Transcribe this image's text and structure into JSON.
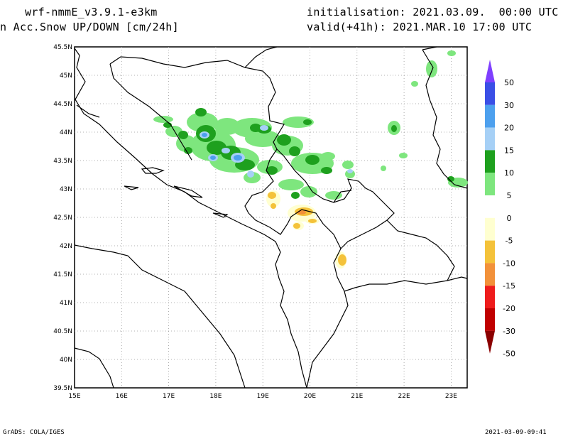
{
  "header": {
    "model": "wrf-nmmE_v3.9.1-e3km",
    "variable": "n Acc.Snow UP/DOWN [cm/24h]",
    "initialisation": "initialisation: 2021.03.09.  00:00 UTC",
    "valid": "valid(+41h): 2021.MAR.10 17:00 UTC"
  },
  "axes": {
    "lat_labels": [
      "45.5N",
      "45N",
      "44.5N",
      "44N",
      "43.5N",
      "43N",
      "42.5N",
      "42N",
      "41.5N",
      "41N",
      "40.5N",
      "40N",
      "39.5N"
    ],
    "lon_labels": [
      "15E",
      "16E",
      "17E",
      "18E",
      "19E",
      "20E",
      "21E",
      "22E",
      "23E"
    ]
  },
  "colorbar": {
    "labels": [
      "50",
      "30",
      "20",
      "15",
      "10",
      "5",
      "0",
      "-5",
      "-10",
      "-15",
      "-20",
      "-30",
      "-50"
    ],
    "colors": [
      "#7f3fff",
      "#3a4fe6",
      "#4da0ee",
      "#a6d0f6",
      "#1ea01e",
      "#7ee67e",
      "#ffffff",
      "#ffffd0",
      "#f4c23a",
      "#f2913a",
      "#ee1c1c",
      "#c00000",
      "#8b0000"
    ]
  },
  "footer": {
    "left": "GrADS: COLA/IGES",
    "right": "2021-03-09-09:41"
  }
}
